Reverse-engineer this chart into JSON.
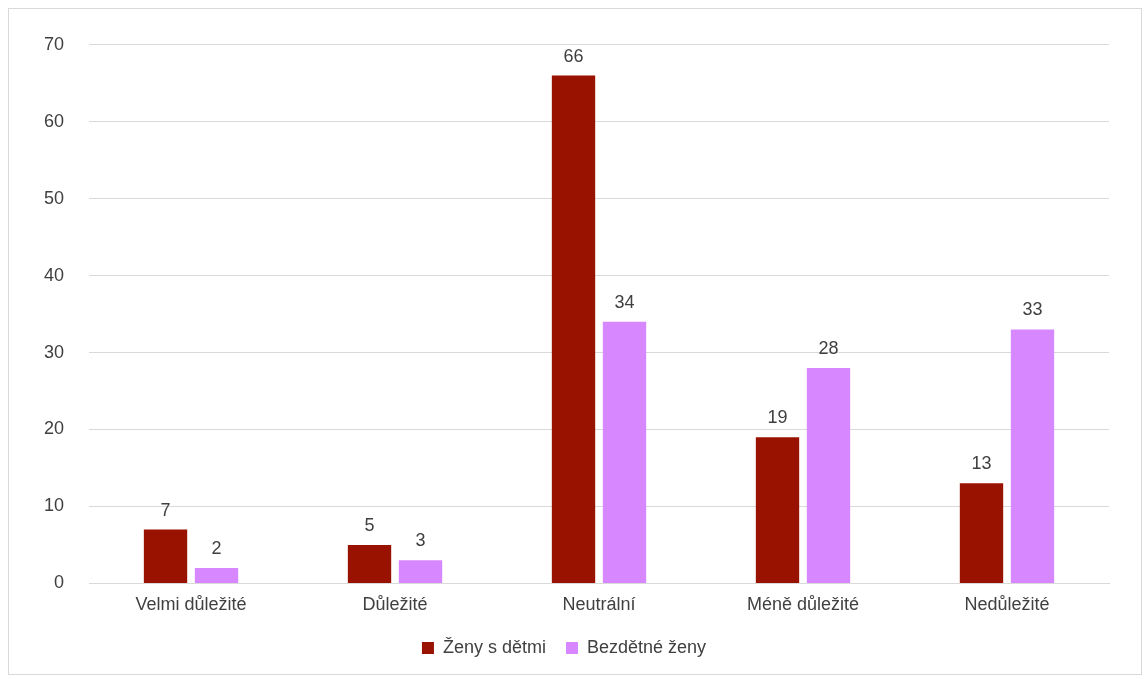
{
  "chart_data": {
    "type": "bar",
    "categories": [
      "Velmi důležité",
      "Důležité",
      "Neutrální",
      "Méně důležité",
      "Nedůležité"
    ],
    "series": [
      {
        "name": "Ženy s dětmi",
        "color": "#991200",
        "values": [
          7,
          5,
          66,
          19,
          13
        ]
      },
      {
        "name": "Bezdětné ženy",
        "color": "#d787ff",
        "values": [
          2,
          3,
          34,
          28,
          33
        ]
      }
    ],
    "ylim": [
      0,
      70
    ],
    "yticks": [
      0,
      10,
      20,
      30,
      40,
      50,
      60,
      70
    ],
    "grid": "y",
    "legend": "bottom",
    "data_labels": true
  }
}
